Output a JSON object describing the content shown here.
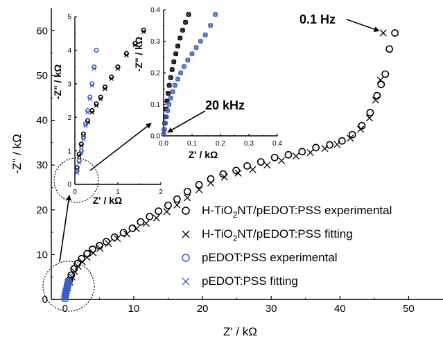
{
  "chart_data": [
    {
      "type": "scatter",
      "role": "main",
      "xlabel": "Z' / kΩ",
      "ylabel": "-Z\" / kΩ",
      "xlim": [
        -2,
        55
      ],
      "ylim": [
        0,
        65
      ],
      "xticks": [
        0,
        10,
        20,
        30,
        40,
        50
      ],
      "yticks": [
        0,
        10,
        20,
        30,
        40,
        50,
        60
      ],
      "xtick_labels": [
        "0",
        "10",
        "20",
        "30",
        "40",
        "50"
      ],
      "ytick_labels": [
        "0",
        "10",
        "20",
        "30",
        "40",
        "50",
        "60"
      ],
      "grid": false,
      "legend_position": "center-right",
      "series": [
        {
          "name": "H-TiO₂NT/pEDOT:PSS experimental",
          "marker": "circle",
          "color": "#000000",
          "x": [
            0.3,
            0.6,
            0.9,
            1.3,
            1.8,
            2.4,
            3.2,
            4.0,
            5.0,
            6.0,
            7.2,
            8.5,
            9.8,
            11.0,
            12.3,
            13.6,
            15.0,
            16.3,
            17.8,
            19.5,
            21.2,
            23.0,
            24.9,
            26.5,
            28.5,
            30.5,
            32.5,
            34.5,
            36.5,
            38.5,
            40.3,
            41.8,
            43.2,
            44.4,
            45.4,
            46.0,
            46.6,
            47.2,
            48.0
          ],
          "y": [
            2.6,
            4.2,
            5.4,
            6.8,
            8.0,
            9.1,
            10.2,
            11.2,
            12.0,
            12.9,
            13.9,
            14.9,
            15.9,
            17.3,
            18.5,
            19.7,
            21.0,
            22.4,
            24.1,
            25.6,
            26.9,
            28.0,
            28.8,
            29.8,
            30.7,
            31.7,
            32.3,
            33.0,
            33.9,
            34.5,
            35.4,
            36.8,
            38.8,
            41.7,
            45.5,
            48.0,
            50.3,
            55.9,
            59.5
          ]
        },
        {
          "name": "H-TiO₂NT/pEDOT:PSS fitting",
          "marker": "x",
          "color": "#000000",
          "x": [
            0.4,
            0.7,
            1.0,
            1.4,
            1.9,
            2.5,
            3.2,
            4.1,
            5.1,
            6.3,
            7.6,
            9.0,
            10.4,
            11.8,
            13.3,
            14.8,
            16.3,
            17.8,
            19.5,
            21.2,
            23.2,
            25.2,
            27.3,
            29.4,
            31.5,
            33.6,
            35.7,
            37.8,
            39.6,
            41.5,
            43.0,
            44.3,
            45.2,
            45.9,
            46.3
          ],
          "y": [
            2.6,
            3.9,
            5.0,
            6.2,
            7.4,
            8.4,
            9.4,
            10.4,
            11.4,
            12.5,
            13.6,
            14.6,
            15.8,
            17.0,
            18.2,
            19.6,
            21.1,
            22.7,
            24.5,
            26.0,
            27.3,
            28.2,
            29.0,
            30.0,
            31.0,
            32.0,
            32.8,
            33.7,
            34.6,
            36.0,
            38.0,
            40.5,
            44.5,
            49.0,
            59.5
          ]
        },
        {
          "name": "pEDOT:PSS experimental",
          "marker": "circle",
          "color": "#3a5fc8",
          "x": [
            0.0,
            0.0,
            0.05,
            0.1,
            0.15,
            0.2,
            0.3,
            0.35,
            0.4,
            0.45,
            0.5
          ],
          "y": [
            0.2,
            0.6,
            1.0,
            1.4,
            1.8,
            2.2,
            2.6,
            3.0,
            3.3,
            3.7,
            4.0
          ],
          "xlim_note": ""
        },
        {
          "name": "pEDOT:PSS fitting",
          "marker": "x",
          "color": "#3a5fc8",
          "x": [
            0.0,
            0.05,
            0.1,
            0.15,
            0.2,
            0.25,
            0.3,
            0.35,
            0.4,
            0.45,
            0.5
          ],
          "y": [
            0.3,
            0.7,
            1.1,
            1.5,
            1.9,
            2.3,
            2.7,
            3.1,
            3.4,
            3.8,
            4.1
          ]
        }
      ],
      "annotations": [
        {
          "text": "0.1 Hz",
          "points_to": {
            "x": 46.3,
            "y": 59.5
          }
        }
      ]
    },
    {
      "type": "scatter",
      "role": "inset",
      "xlabel": "Z' / kΩ",
      "ylabel": "-Z\" / kΩ",
      "xlim": [
        0,
        2
      ],
      "ylim": [
        0,
        5
      ],
      "xticks": [
        0,
        1,
        2
      ],
      "yticks": [
        0,
        1,
        2,
        3,
        4,
        5
      ],
      "xtick_labels": [
        "0",
        "1",
        "2"
      ],
      "ytick_labels": [
        "0",
        "1",
        "2",
        "3",
        "4",
        "5"
      ],
      "series": [
        {
          "name": "H-TiO₂NT/pEDOT:PSS experimental",
          "marker": "circle",
          "color": "#000000",
          "x": [
            0.05,
            0.1,
            0.15,
            0.2,
            0.3,
            0.4,
            0.5,
            0.6,
            0.7,
            0.85,
            1.0,
            1.2,
            1.4,
            1.6
          ],
          "y": [
            0.5,
            0.9,
            1.2,
            1.5,
            1.9,
            2.2,
            2.4,
            2.6,
            2.9,
            3.2,
            3.5,
            3.9,
            4.2,
            4.6
          ]
        },
        {
          "name": "H-TiO₂NT/pEDOT:PSS fitting",
          "marker": "x",
          "color": "#000000",
          "x": [
            0.05,
            0.1,
            0.15,
            0.2,
            0.3,
            0.4,
            0.5,
            0.6,
            0.7,
            0.85,
            1.0,
            1.2,
            1.4,
            1.6
          ],
          "y": [
            0.45,
            0.85,
            1.15,
            1.45,
            1.85,
            2.15,
            2.35,
            2.55,
            2.85,
            3.15,
            3.45,
            3.85,
            4.15,
            4.55
          ]
        },
        {
          "name": "pEDOT:PSS experimental",
          "marker": "circle",
          "color": "#3a5fc8",
          "x": [
            0.05,
            0.1,
            0.15,
            0.2,
            0.25,
            0.3,
            0.35,
            0.4,
            0.45,
            0.5
          ],
          "y": [
            0.4,
            0.7,
            1.0,
            1.4,
            1.8,
            2.2,
            2.6,
            3.0,
            3.5,
            4.0
          ]
        },
        {
          "name": "pEDOT:PSS fitting",
          "marker": "x",
          "color": "#3a5fc8",
          "x": [
            0.05,
            0.1,
            0.15,
            0.2,
            0.25,
            0.3,
            0.35,
            0.4,
            0.45
          ],
          "y": [
            0.35,
            0.65,
            0.95,
            1.35,
            1.75,
            2.15,
            2.55,
            2.95,
            3.45
          ]
        }
      ]
    },
    {
      "type": "scatter",
      "role": "inset",
      "xlabel": "Z' / kΩ",
      "ylabel": "-Z\" / kΩ",
      "xlim": [
        0,
        0.4
      ],
      "ylim": [
        0,
        0.4
      ],
      "xticks": [
        0,
        0.1,
        0.2,
        0.3,
        0.4
      ],
      "yticks": [
        0,
        0.1,
        0.2,
        0.3,
        0.4
      ],
      "xtick_labels": [
        "0.0",
        "0.1",
        "0.2",
        "0.3",
        "0.4"
      ],
      "ytick_labels": [
        "0.0",
        "0.1",
        "0.2",
        "0.3",
        "0.4"
      ],
      "series": [
        {
          "name": "H-TiO₂NT/pEDOT:PSS experimental",
          "marker": "circle",
          "color": "#000000",
          "x": [
            0.0,
            0.002,
            0.004,
            0.006,
            0.009,
            0.012,
            0.016,
            0.02,
            0.025,
            0.03,
            0.036,
            0.043,
            0.05,
            0.058,
            0.067,
            0.077,
            0.088
          ],
          "y": [
            0.005,
            0.02,
            0.04,
            0.06,
            0.085,
            0.11,
            0.135,
            0.16,
            0.185,
            0.21,
            0.235,
            0.26,
            0.285,
            0.31,
            0.335,
            0.36,
            0.385
          ]
        },
        {
          "name": "H-TiO₂NT/pEDOT:PSS fitting",
          "marker": "x",
          "color": "#000000",
          "x": [
            0.0,
            0.002,
            0.004,
            0.006,
            0.009,
            0.012,
            0.016,
            0.02,
            0.025,
            0.03,
            0.036,
            0.043,
            0.05,
            0.058,
            0.067,
            0.077,
            0.088
          ],
          "y": [
            0.005,
            0.02,
            0.04,
            0.06,
            0.085,
            0.11,
            0.135,
            0.16,
            0.185,
            0.21,
            0.235,
            0.26,
            0.285,
            0.31,
            0.335,
            0.36,
            0.385
          ]
        },
        {
          "name": "pEDOT:PSS experimental",
          "marker": "circle",
          "color": "#3a5fc8",
          "x": [
            0.0,
            0.003,
            0.006,
            0.01,
            0.014,
            0.019,
            0.025,
            0.032,
            0.04,
            0.05,
            0.06,
            0.072,
            0.085,
            0.1,
            0.115,
            0.13,
            0.147,
            0.165,
            0.182
          ],
          "y": [
            0.005,
            0.02,
            0.04,
            0.06,
            0.08,
            0.1,
            0.12,
            0.14,
            0.16,
            0.18,
            0.2,
            0.22,
            0.24,
            0.26,
            0.28,
            0.3,
            0.32,
            0.35,
            0.385
          ]
        },
        {
          "name": "pEDOT:PSS fitting",
          "marker": "x",
          "color": "#3a5fc8",
          "x": [
            0.0,
            0.003,
            0.006,
            0.01,
            0.014,
            0.019,
            0.025,
            0.032,
            0.04,
            0.05,
            0.06,
            0.072,
            0.085,
            0.1,
            0.115,
            0.13,
            0.147,
            0.165,
            0.182
          ],
          "y": [
            0.005,
            0.02,
            0.04,
            0.06,
            0.08,
            0.1,
            0.12,
            0.14,
            0.16,
            0.18,
            0.2,
            0.22,
            0.24,
            0.26,
            0.28,
            0.3,
            0.32,
            0.35,
            0.385
          ]
        }
      ],
      "annotations": [
        {
          "text": "20 kHz",
          "points_to": {
            "x": 0.005,
            "y": 0.005
          }
        }
      ]
    }
  ],
  "legend": {
    "entries": [
      {
        "marker": "circle",
        "color": "#000000",
        "text_pre": "H-TiO",
        "sub": "2",
        "text_post": "NT/pEDOT:PSS experimental"
      },
      {
        "marker": "x",
        "color": "#000000",
        "text_pre": "H-TiO",
        "sub": "2",
        "text_post": "NT/pEDOT:PSS fitting"
      },
      {
        "marker": "circle",
        "color": "#3a5fc8",
        "text_pre": "pEDOT:PSS experimental",
        "sub": "",
        "text_post": ""
      },
      {
        "marker": "x",
        "color": "#3a5fc8",
        "text_pre": "pEDOT:PSS fitting",
        "sub": "",
        "text_post": ""
      }
    ]
  }
}
